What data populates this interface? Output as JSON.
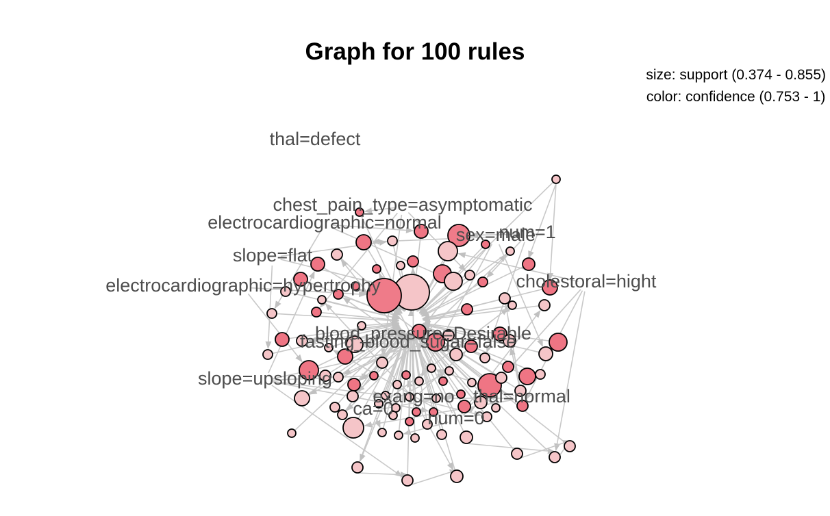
{
  "graph": {
    "title": "Graph for 100 rules",
    "legend_size": "size: support (0.374 - 0.855)",
    "legend_color": "color: confidence (0.753 - 1)",
    "item_labels": [
      "thal=defect",
      "chest_pain_type=asymptomatic",
      "electrocardiographic=normal",
      "num=1",
      "sex=male",
      "slope=flat",
      "electrocardiographic=hypertrophy",
      "cholestoral=hight",
      "blood_pressure=Desirable",
      "fasting_blood_sugar=false",
      "slope=upsloping",
      "exang=no",
      "thal=normal",
      "ca=0",
      "num=0"
    ],
    "colors": {
      "high_confidence": "#ee6a7a",
      "low_confidence": "#f7dcdc",
      "edge": "#c8c8c8",
      "label": "#4d4d4d"
    }
  }
}
